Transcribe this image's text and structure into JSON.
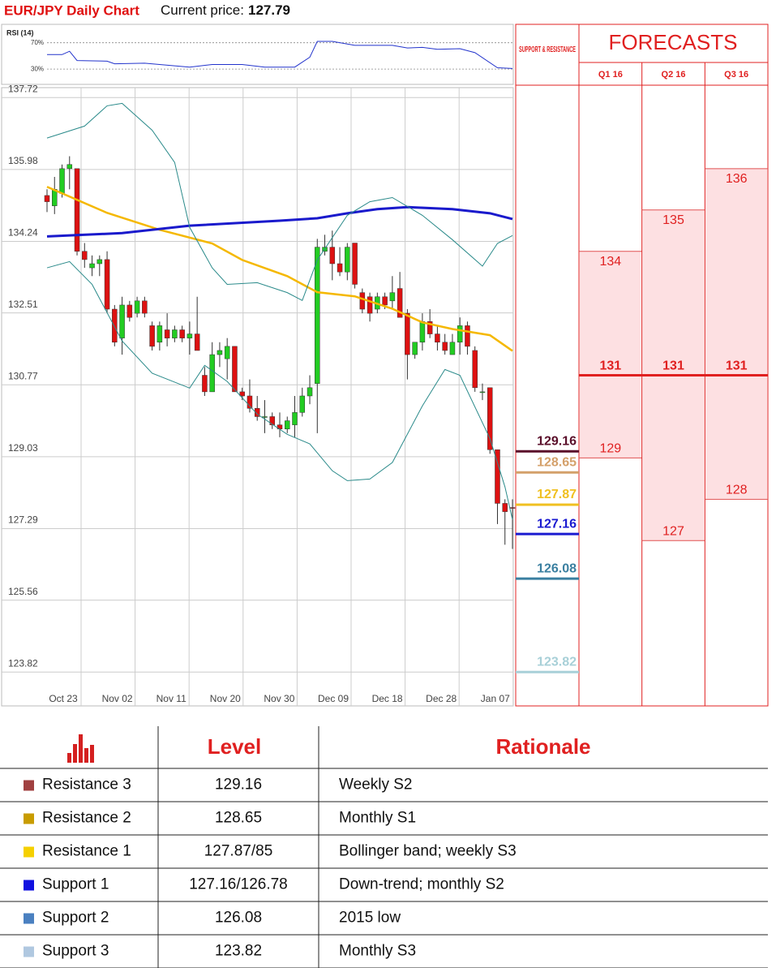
{
  "header": {
    "title": "EUR/JPY Daily Chart",
    "price_label": "Current price:",
    "price": 127.79
  },
  "chart_data": [
    {
      "type": "line",
      "title": "RSI (14)",
      "color": "#2233cc",
      "x": [
        0,
        2,
        3,
        4,
        8,
        9,
        13,
        19,
        22,
        26,
        29,
        33,
        35,
        36,
        38,
        41,
        46,
        48,
        50,
        52,
        55,
        57,
        60,
        62
      ],
      "values": [
        52,
        52,
        57,
        43,
        42,
        38,
        39,
        33,
        37,
        37,
        33,
        33,
        48,
        72,
        72,
        66,
        66,
        62,
        63,
        60,
        61,
        55,
        32,
        31
      ],
      "ylim": [
        8,
        93
      ],
      "yticks": [
        {
          "value": 70,
          "label": "70%"
        },
        {
          "value": 30,
          "label": "30%"
        }
      ]
    },
    {
      "type": "candlestick",
      "up_color": "#22cc22",
      "down_color": "#dd1111",
      "ylim": [
        123.0,
        137.96
      ],
      "yticks": [
        137.72,
        135.98,
        134.24,
        132.51,
        130.77,
        129.03,
        127.29,
        125.56,
        123.82
      ],
      "xtick_labels": [
        "Oct 23",
        "Nov 02",
        "Nov 11",
        "Nov 20",
        "Nov 30",
        "Dec 09",
        "Dec 18",
        "Dec 28",
        "Jan 07"
      ],
      "grid": true,
      "candles": [
        [
          135.35,
          135.5,
          134.95,
          135.2
        ],
        [
          135.1,
          135.8,
          134.9,
          135.5
        ],
        [
          135.4,
          136.1,
          135.3,
          136.0
        ],
        [
          136.0,
          136.3,
          135.5,
          136.1
        ],
        [
          136.0,
          136.0,
          133.9,
          134.0
        ],
        [
          134.0,
          134.2,
          133.6,
          133.8
        ],
        [
          133.6,
          133.9,
          133.4,
          133.7
        ],
        [
          133.7,
          133.9,
          133.4,
          133.8
        ],
        [
          133.8,
          134.0,
          132.5,
          132.6
        ],
        [
          132.6,
          132.7,
          131.7,
          131.8
        ],
        [
          131.9,
          132.9,
          131.5,
          132.7
        ],
        [
          132.7,
          132.8,
          132.3,
          132.4
        ],
        [
          132.5,
          132.9,
          132.4,
          132.8
        ],
        [
          132.8,
          132.9,
          132.4,
          132.5
        ],
        [
          132.2,
          132.3,
          131.6,
          131.7
        ],
        [
          131.8,
          132.3,
          131.6,
          132.2
        ],
        [
          132.1,
          132.5,
          131.7,
          131.9
        ],
        [
          131.9,
          132.2,
          131.8,
          132.1
        ],
        [
          132.1,
          132.2,
          131.8,
          131.9
        ],
        [
          131.9,
          132.3,
          131.5,
          132.0
        ],
        [
          132.0,
          132.9,
          131.6,
          131.6
        ],
        [
          131.0,
          131.2,
          130.5,
          130.6
        ],
        [
          130.6,
          131.8,
          130.6,
          131.5
        ],
        [
          131.5,
          131.8,
          131.2,
          131.6
        ],
        [
          131.4,
          131.9,
          130.9,
          131.7
        ],
        [
          131.7,
          131.7,
          130.6,
          130.6
        ],
        [
          130.6,
          130.7,
          130.4,
          130.5
        ],
        [
          130.5,
          130.9,
          130.1,
          130.2
        ],
        [
          130.2,
          130.5,
          129.9,
          130.0
        ],
        [
          130.0,
          130.4,
          129.6,
          130.0
        ],
        [
          130.0,
          130.1,
          129.7,
          129.8
        ],
        [
          129.8,
          130.1,
          129.5,
          129.7
        ],
        [
          129.7,
          130.0,
          129.6,
          129.9
        ],
        [
          129.8,
          130.5,
          129.5,
          130.1
        ],
        [
          130.1,
          130.7,
          130.0,
          130.5
        ],
        [
          130.5,
          131.0,
          130.3,
          130.7
        ],
        [
          130.8,
          134.3,
          129.6,
          134.1
        ],
        [
          134.0,
          134.4,
          133.9,
          134.1
        ],
        [
          134.1,
          134.5,
          133.3,
          133.7
        ],
        [
          133.7,
          134.1,
          133.4,
          133.5
        ],
        [
          133.5,
          134.2,
          133.3,
          134.1
        ],
        [
          134.2,
          134.2,
          133.1,
          133.2
        ],
        [
          133.0,
          133.1,
          132.5,
          132.6
        ],
        [
          132.9,
          133.0,
          132.3,
          132.5
        ],
        [
          132.6,
          133.0,
          132.5,
          132.9
        ],
        [
          132.9,
          133.0,
          132.6,
          132.7
        ],
        [
          132.8,
          133.4,
          132.6,
          133.0
        ],
        [
          133.1,
          133.5,
          132.4,
          132.4
        ],
        [
          132.5,
          132.6,
          130.9,
          131.5
        ],
        [
          131.5,
          131.8,
          131.4,
          131.8
        ],
        [
          131.8,
          132.5,
          131.6,
          132.3
        ],
        [
          132.3,
          132.6,
          131.9,
          132.0
        ],
        [
          132.0,
          132.2,
          131.6,
          131.8
        ],
        [
          131.8,
          132.0,
          131.5,
          131.6
        ],
        [
          131.5,
          132.0,
          131.5,
          131.8
        ],
        [
          131.8,
          132.4,
          131.5,
          132.2
        ],
        [
          132.2,
          132.3,
          131.5,
          131.7
        ],
        [
          131.6,
          131.7,
          130.6,
          130.7
        ],
        [
          130.6,
          130.8,
          130.4,
          130.6
        ],
        [
          130.7,
          130.7,
          129.1,
          129.2
        ],
        [
          129.2,
          129.2,
          127.4,
          127.9
        ],
        [
          127.9,
          128.0,
          126.9,
          127.7
        ],
        [
          127.8,
          128.0,
          126.8,
          127.79
        ]
      ],
      "lines": [
        {
          "color": "#f5b800",
          "x": [
            0,
            8,
            15,
            22,
            26,
            32,
            36,
            41,
            46,
            50,
            54,
            59,
            62
          ],
          "values": [
            135.56,
            134.93,
            134.52,
            134.19,
            133.79,
            133.4,
            133.01,
            132.91,
            132.61,
            132.28,
            132.12,
            131.97,
            131.59
          ]
        },
        {
          "color": "#1a1acc",
          "x": [
            0,
            10,
            19,
            31,
            36,
            40,
            44,
            48,
            54,
            59,
            62
          ],
          "values": [
            134.36,
            134.44,
            134.62,
            134.74,
            134.8,
            134.92,
            135.02,
            135.07,
            135.02,
            134.92,
            134.78
          ]
        },
        {
          "color": "#2a8a8a",
          "x": [
            0,
            5,
            8,
            10,
            14,
            17,
            19,
            22,
            24,
            28,
            32,
            34,
            36,
            40,
            43,
            46,
            50,
            54,
            58,
            60,
            62
          ],
          "values": [
            136.74,
            137.03,
            137.52,
            137.58,
            136.93,
            136.15,
            134.58,
            133.6,
            133.2,
            133.24,
            133.0,
            132.81,
            133.79,
            134.87,
            135.2,
            135.3,
            134.87,
            134.28,
            133.64,
            134.19,
            134.38
          ]
        },
        {
          "color": "#2a8a8a",
          "x": [
            0,
            3,
            6,
            10,
            14,
            19,
            21,
            24,
            28,
            32,
            35,
            38,
            40,
            43,
            46,
            50,
            53,
            55,
            59,
            61,
            62
          ],
          "values": [
            133.6,
            133.75,
            133.2,
            131.83,
            131.05,
            130.69,
            131.24,
            130.85,
            130.06,
            129.57,
            129.34,
            128.69,
            128.45,
            128.49,
            128.89,
            130.26,
            131.14,
            131.0,
            129.47,
            128.3,
            127.51
          ]
        }
      ],
      "levels": [
        {
          "value": 129.16,
          "color": "#5a0f2a"
        },
        {
          "value": 128.65,
          "color": "#d4a06a"
        },
        {
          "value": 127.87,
          "color": "#f0c020"
        },
        {
          "value": 127.16,
          "color": "#1a1ad0"
        },
        {
          "value": 126.08,
          "color": "#3a7fa0"
        },
        {
          "value": 123.82,
          "color": "#a8d0d8"
        }
      ]
    }
  ],
  "forecasts": {
    "title": "FORECASTS",
    "sr_label": "SUPPORT & RESISTANCE",
    "quarters": [
      {
        "label": "Q1 16",
        "high": 134,
        "central": 131,
        "low": 129
      },
      {
        "label": "Q2 16",
        "high": 135,
        "central": 131,
        "low": 127
      },
      {
        "label": "Q3 16",
        "high": 136,
        "central": 131,
        "low": 128
      }
    ]
  },
  "table": {
    "headers": [
      "Level",
      "Rationale"
    ],
    "rows": [
      {
        "name": "Resistance 3",
        "color": "#a04040",
        "level": "129.16",
        "rationale": "Weekly S2"
      },
      {
        "name": "Resistance 2",
        "color": "#c89c00",
        "level": "128.65",
        "rationale": "Monthly S1"
      },
      {
        "name": "Resistance 1",
        "color": "#f5d000",
        "level": "127.87/85",
        "rationale": "Bollinger band; weekly S3"
      },
      {
        "name": "Support 1",
        "color": "#1010e0",
        "level": "127.16/126.78",
        "rationale": "Down-trend; monthly S2"
      },
      {
        "name": "Support 2",
        "color": "#4a80c0",
        "level": "126.08",
        "rationale": "2015 low"
      },
      {
        "name": "Support 3",
        "color": "#b0c8e0",
        "level": "123.82",
        "rationale": "Monthly S3"
      }
    ]
  }
}
